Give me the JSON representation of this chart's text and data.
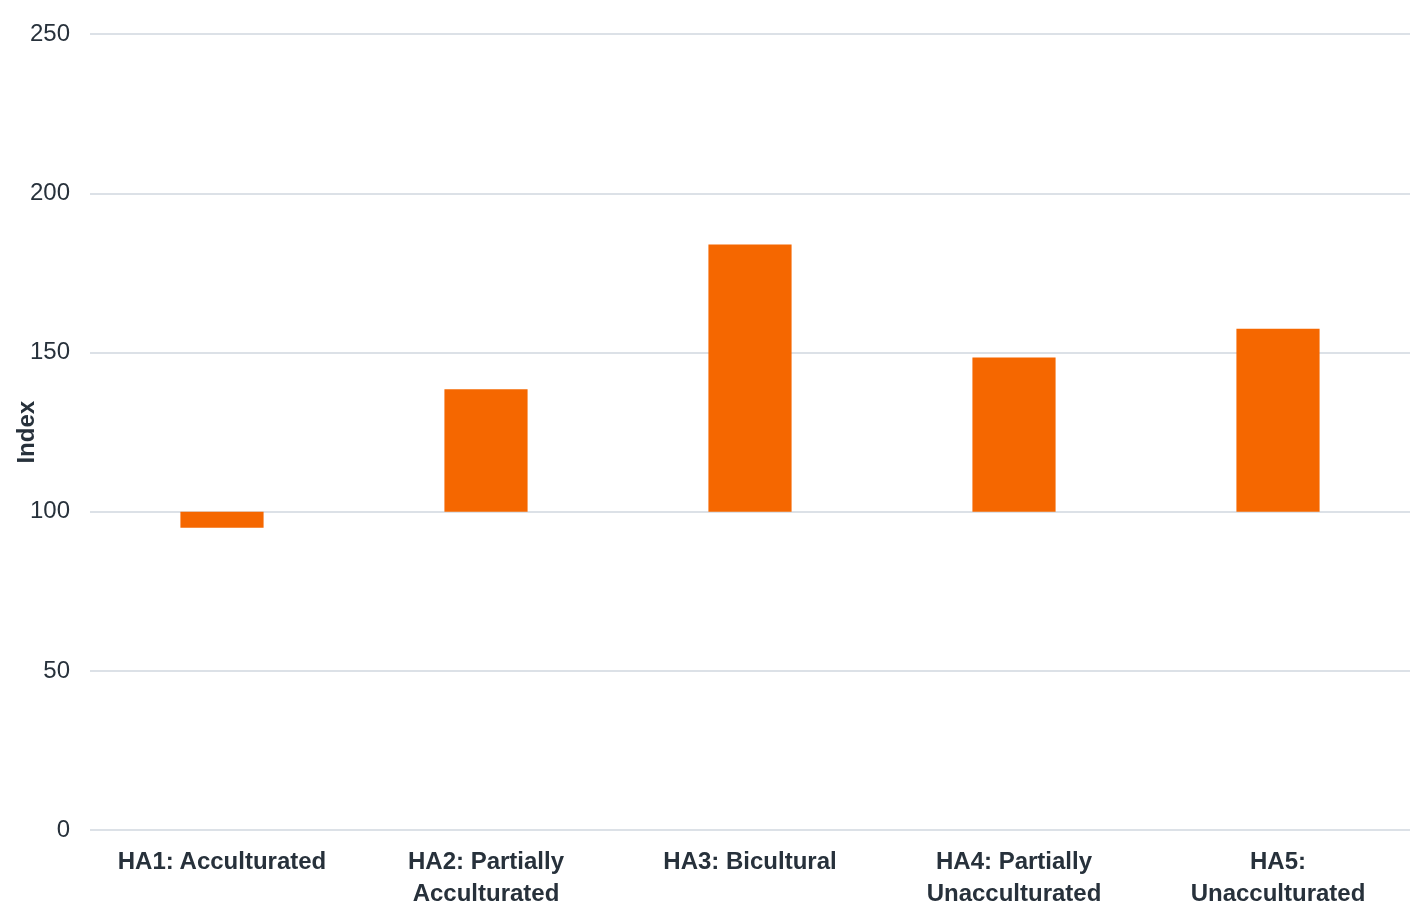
{
  "chart_data": {
    "type": "bar",
    "ylabel": "Index",
    "categories": [
      "HA1: Acculturated",
      "HA2: Partially Acculturated",
      "HA3: Bicultural",
      "HA4: Partially Unacculturated",
      "HA5: Unacculturated"
    ],
    "values": [
      -5,
      38.5,
      84,
      48.5,
      57.5
    ],
    "base": [
      100,
      100,
      100,
      100,
      100
    ],
    "color": "#f56700",
    "ylim": [
      0,
      250
    ],
    "yticks": [
      0,
      50,
      100,
      150,
      200,
      250
    ],
    "grid": "y"
  }
}
